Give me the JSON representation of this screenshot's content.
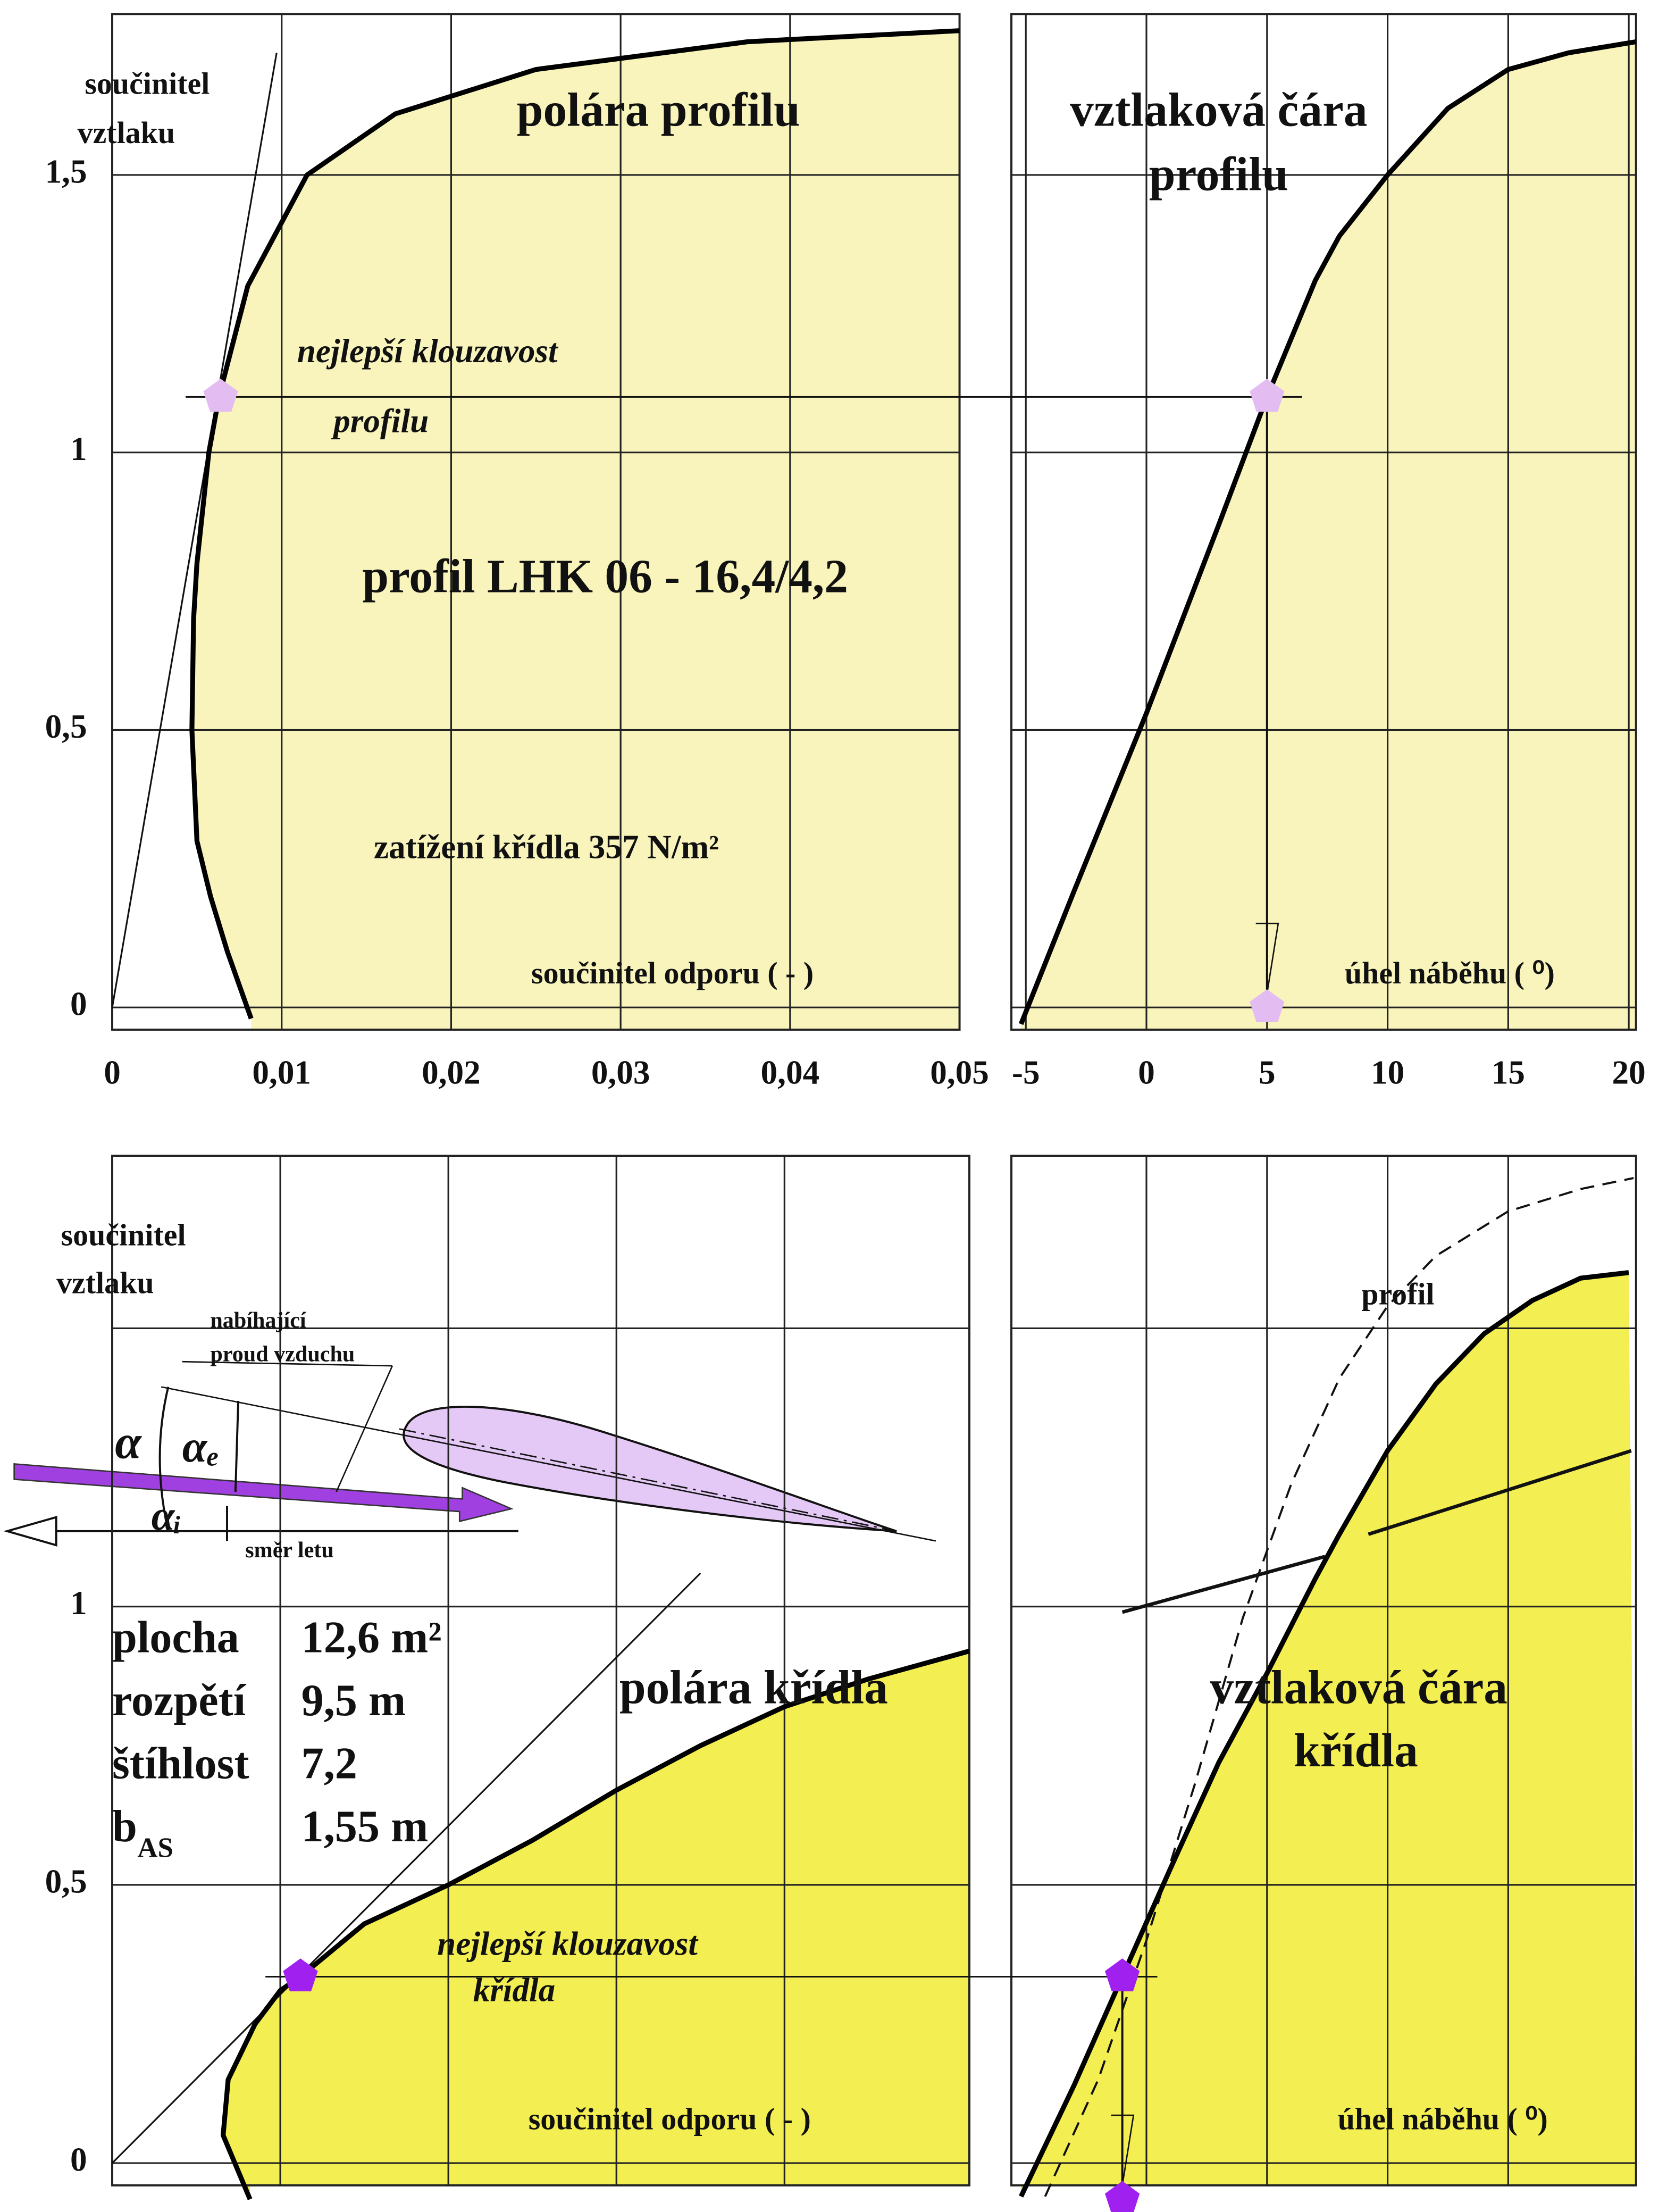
{
  "chart_data": [
    {
      "type": "line",
      "title": [
        "polára  profilu"
      ],
      "ylabel": [
        "součinitel",
        "vztlaku"
      ],
      "xlabel": "součinitel  odporu  ( - )",
      "annotations": [
        "nejlepší  klouzavost",
        "profilu",
        "profil LHK 06 - 16,4/4,2",
        "zatížení křídla 357 N/m²"
      ],
      "xlim": [
        0,
        0.05
      ],
      "ylim": [
        -0.04,
        1.79
      ],
      "xticks": [
        0,
        {
          "value": 0.01,
          "label": "0,01"
        },
        {
          "value": 0.02,
          "label": "0,02"
        },
        {
          "value": 0.03,
          "label": "0,03"
        },
        {
          "value": 0.04,
          "label": "0,04"
        },
        {
          "value": 0.05,
          "label": "0,05"
        }
      ],
      "yticks": [
        0,
        {
          "value": 0.5,
          "label": "0,5"
        },
        1,
        {
          "value": 1.5,
          "label": "1,5"
        }
      ],
      "grid": true,
      "fill_color": "#f8f4bc",
      "line_color": "#000000",
      "x": [
        0.0082,
        0.0068,
        0.0058,
        0.005,
        0.0047,
        0.0048,
        0.005,
        0.0057,
        0.0063,
        0.008,
        0.0115,
        0.0167,
        0.025,
        0.0375,
        0.05
      ],
      "values": [
        -0.02,
        0.1,
        0.2,
        0.3,
        0.5,
        0.7,
        0.8,
        1.0,
        1.1,
        1.3,
        1.5,
        1.61,
        1.69,
        1.74,
        1.76
      ],
      "tangent": {
        "x": [
          0,
          0.0097
        ],
        "values": [
          0,
          1.72
        ]
      },
      "markers": {
        "x": [
          0.0064
        ],
        "values": [
          1.1
        ],
        "color": "#e3bdf2"
      }
    },
    {
      "type": "line",
      "title": [
        "vztlaková  čára",
        "profilu"
      ],
      "xlabel": "úhel náběhu ( ⁰)",
      "xlim": [
        -5.6,
        20.3
      ],
      "ylim": [
        -0.04,
        1.79
      ],
      "xticks": [
        -5,
        0,
        5,
        10,
        15,
        20
      ],
      "ygrid": [
        0,
        0.5,
        1,
        1.5
      ],
      "grid": true,
      "fill_color": "#f8f4bc",
      "line_color": "#000000",
      "x": [
        -5.2,
        -3,
        0,
        3,
        5,
        7,
        8,
        10,
        12.5,
        15,
        17.5,
        20.3
      ],
      "values": [
        -0.03,
        0.21,
        0.53,
        0.87,
        1.1,
        1.31,
        1.39,
        1.5,
        1.62,
        1.69,
        1.72,
        1.74
      ],
      "markers": {
        "x": [
          5,
          5
        ],
        "values": [
          1.1,
          0
        ],
        "color": "#e3bdf2"
      }
    },
    {
      "type": "line",
      "title": [
        "polára  křídla"
      ],
      "ylabel": [
        "součinitel",
        "vztlaku"
      ],
      "xlabel": "součinitel odporu ( - )",
      "annotations": [
        "nejlepší  klouzavost",
        "křídla"
      ],
      "wing": [
        {
          "name": "plocha",
          "value": "12,6 m²"
        },
        {
          "name": "rozpětí",
          "value": "9,5 m"
        },
        {
          "name": "štíhlost",
          "value": "7,2"
        },
        {
          "name": "b",
          "sub": "AS",
          "value": "1,55 m"
        }
      ],
      "diagram": {
        "labels": [
          "nabíhající",
          "proud vzduchu",
          "směr  letu"
        ],
        "angles": [
          "α",
          "αₑ",
          "αᵢ"
        ]
      },
      "xlim": [
        0,
        0.051
      ],
      "ylim": [
        -0.04,
        1.81
      ],
      "xgrid": [
        0.01,
        0.02,
        0.03,
        0.04
      ],
      "yticks": [
        0,
        {
          "value": 0.5,
          "label": "0,5"
        },
        1
      ],
      "ygrid": [
        1.5
      ],
      "grid": true,
      "fill_color": "#f3ee52",
      "line_color": "#000000",
      "x": [
        0.0082,
        0.0066,
        0.0069,
        0.0085,
        0.01,
        0.0112,
        0.015,
        0.02,
        0.025,
        0.03,
        0.035,
        0.04,
        0.045,
        0.051
      ],
      "values": [
        -0.065,
        0.05,
        0.15,
        0.25,
        0.31,
        0.335,
        0.43,
        0.5,
        0.58,
        0.67,
        0.75,
        0.82,
        0.87,
        0.92
      ],
      "tangent": {
        "x": [
          0,
          0.035
        ],
        "values": [
          0,
          1.06
        ]
      },
      "markers": {
        "x": [
          0.0112
        ],
        "values": [
          0.335
        ],
        "color": "#a020f0"
      }
    },
    {
      "type": "line",
      "title": [
        "vztlaková  čára",
        "křídla"
      ],
      "xlabel": "úhel náběhu  ( ⁰)",
      "annotations": [
        "profil"
      ],
      "xlim": [
        -5.6,
        20.3
      ],
      "ylim": [
        -0.04,
        1.81
      ],
      "xgrid": [
        0,
        5,
        10,
        15
      ],
      "ygrid": [
        0,
        0.5,
        1,
        1.5
      ],
      "grid": true,
      "fill_color": "#f3ee52",
      "line_color": "#000000",
      "x": [
        -5.2,
        -3,
        -1,
        1,
        3,
        5,
        7,
        8,
        10,
        12,
        14,
        16,
        18,
        20
      ],
      "values": [
        -0.06,
        0.14,
        0.335,
        0.53,
        0.72,
        0.88,
        1.05,
        1.13,
        1.28,
        1.4,
        1.49,
        1.55,
        1.59,
        1.6
      ],
      "profile_curve": {
        "x": [
          -4.2,
          -2,
          0,
          2,
          4,
          5,
          6,
          8,
          10,
          12,
          15,
          18,
          20.2
        ],
        "values": [
          -0.06,
          0.15,
          0.4,
          0.68,
          0.98,
          1.1,
          1.22,
          1.41,
          1.54,
          1.63,
          1.71,
          1.75,
          1.77
        ]
      },
      "aux_line": {
        "x": [
          -1,
          7.4,
          8.3,
          9.2,
          20.1
        ],
        "values": [
          0.99,
          1.09,
          null,
          1.13,
          1.28
        ]
      },
      "markers": {
        "x": [
          -1,
          -1
        ],
        "values": [
          0.335,
          -0.065
        ],
        "color": "#a020f0"
      }
    }
  ]
}
